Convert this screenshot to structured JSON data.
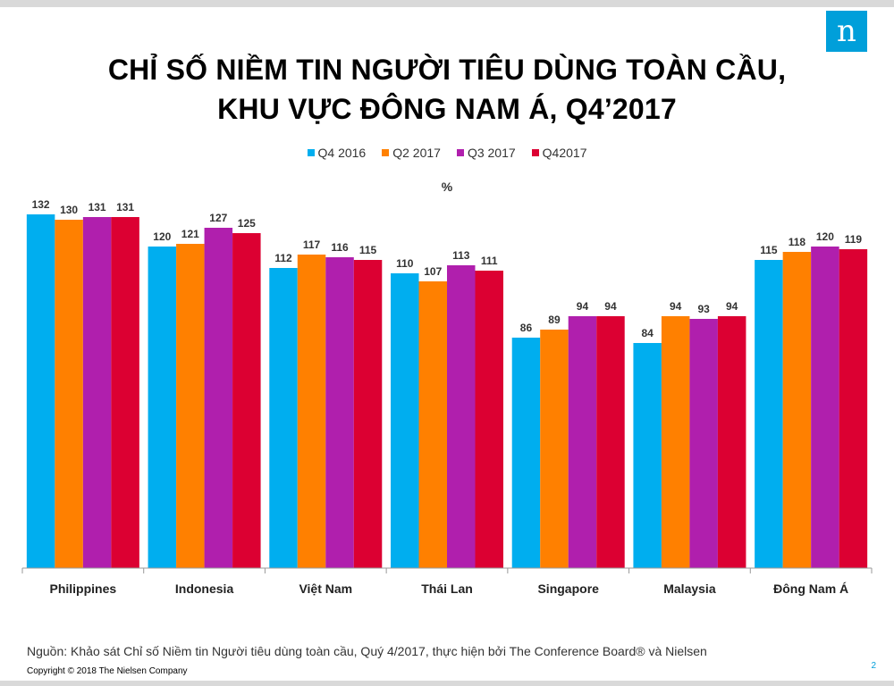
{
  "slide": {
    "logo_glyph": "n",
    "title_line1": "CHỈ SỐ NIỀM TIN NGƯỜI TIÊU DÙNG TOÀN CẦU,",
    "title_line2": "KHU VỰC ĐÔNG NAM Á, Q4’2017",
    "unit": "%",
    "source": "Nguồn: Khảo sát Chỉ số Niềm tin Người tiêu dùng toàn cầu, Quý 4/2017, thực hiện bởi The Conference Board® và Nielsen",
    "copyright": "Copyright © 2018 The Nielsen Company",
    "page_number": "2",
    "brand_color": "#009fda"
  },
  "chart_data": {
    "type": "bar",
    "categories": [
      "Philippines",
      "Indonesia",
      "Việt Nam",
      "Thái Lan",
      "Singapore",
      "Malaysia",
      "Đông Nam Á"
    ],
    "series": [
      {
        "name": "Q4 2016",
        "color": "#00aeef",
        "values": [
          132,
          120,
          112,
          110,
          86,
          84,
          115
        ]
      },
      {
        "name": "Q2 2017",
        "color": "#ff8000",
        "values": [
          130,
          121,
          117,
          107,
          89,
          94,
          118
        ]
      },
      {
        "name": "Q3 2017",
        "color": "#b01fad",
        "values": [
          131,
          127,
          116,
          113,
          94,
          93,
          120
        ]
      },
      {
        "name": "Q42017",
        "color": "#dc0032",
        "values": [
          131,
          125,
          115,
          111,
          94,
          94,
          119
        ]
      }
    ],
    "ylim": [
      0,
      140
    ],
    "grid": false,
    "legend_position": "top-center",
    "data_labels": true
  }
}
